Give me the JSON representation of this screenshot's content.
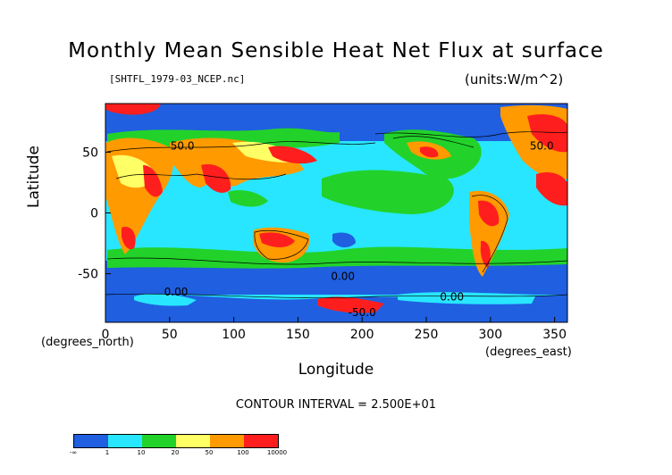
{
  "chart_data": {
    "type": "heatmap",
    "title": "Monthly Mean Sensible Heat Net Flux at surface",
    "subtitle": "[SHTFL_1979-03_NCEP.nc]",
    "units": "(units:W/m^2)",
    "xlabel": "Longitude",
    "ylabel": "Latitude",
    "x_note": "(degrees_east)",
    "y_note": "(degrees_north)",
    "xlim": [
      0,
      360
    ],
    "ylim": [
      -90,
      90
    ],
    "x_ticks": [
      "0",
      "50",
      "100",
      "150",
      "200",
      "250",
      "300",
      "350"
    ],
    "x_tick_values": [
      0,
      50,
      100,
      150,
      200,
      250,
      300,
      350
    ],
    "y_ticks": [
      "50",
      "0",
      "-50"
    ],
    "y_tick_values": [
      50,
      0,
      -50
    ],
    "contour_interval": "CONTOUR INTERVAL = 2.500E+01",
    "contour_labels": [
      "50.0",
      "0.00",
      "0.00",
      "0.00",
      "50.0",
      "-50.0"
    ],
    "colorbar": {
      "labels": [
        "-∞",
        "1",
        "10",
        "20",
        "50",
        "100",
        "10000"
      ],
      "colors": [
        "#1f5fe0",
        "#28e6ff",
        "#22d22a",
        "#ffff66",
        "#ff9a00",
        "#ff1e1e"
      ]
    }
  },
  "colors": {
    "ocean_low": "#1f5fe0",
    "ocean_mid": "#28e6ff",
    "green": "#22d22a",
    "yellow": "#ffff66",
    "orange": "#ff9a00",
    "red": "#ff1e1e"
  }
}
